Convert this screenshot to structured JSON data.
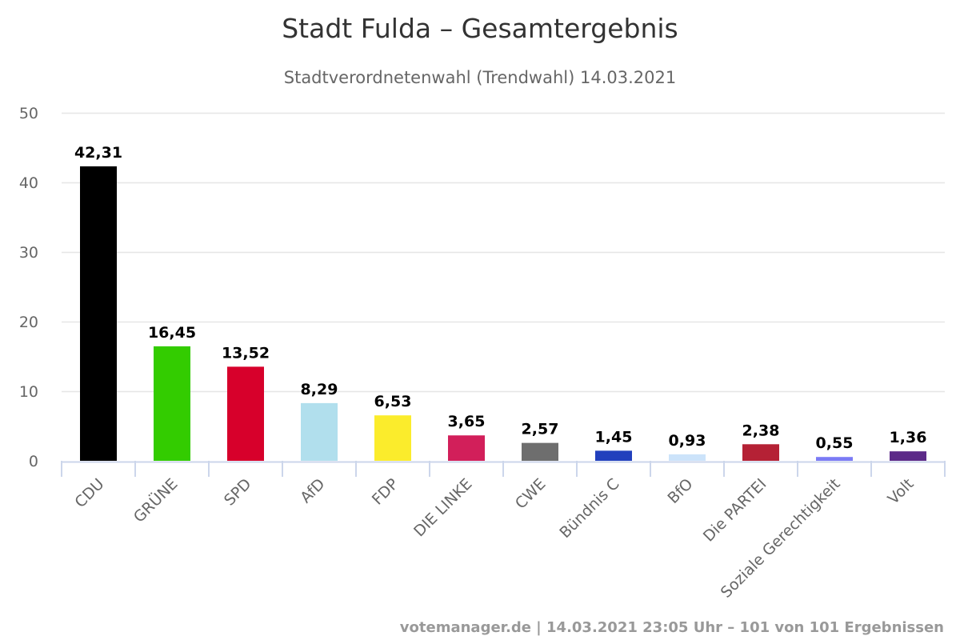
{
  "chart_data": {
    "type": "bar",
    "title": "Stadt Fulda – Gesamtergebnis",
    "subtitle": "Stadtverordnetenwahl (Trendwahl) 14.03.2021",
    "xlabel": "",
    "ylabel": "",
    "ylim": [
      0,
      50
    ],
    "yticks": [
      0,
      10,
      20,
      30,
      40,
      50
    ],
    "grid": true,
    "legend": "none",
    "categories": [
      "CDU",
      "GRÜNE",
      "SPD",
      "AfD",
      "FDP",
      "DIE LINKE",
      "CWE",
      "Bündnis C",
      "BfO",
      "Die PARTEI",
      "Soziale Gerechtigkeit",
      "Volt"
    ],
    "values": [
      42.31,
      16.45,
      13.52,
      8.29,
      6.53,
      3.65,
      2.57,
      1.45,
      0.93,
      2.38,
      0.55,
      1.36
    ],
    "data_labels": [
      "42,31",
      "16,45",
      "13,52",
      "8,29",
      "6,53",
      "3,65",
      "2,57",
      "1,45",
      "0,93",
      "2,38",
      "0,55",
      "1,36"
    ],
    "colors": [
      "#000000",
      "#33cc00",
      "#d7002b",
      "#b1dfed",
      "#fbec2c",
      "#d21f5a",
      "#6e6e6e",
      "#2240bd",
      "#cce3fa",
      "#b52135",
      "#7b7bf5",
      "#5c2a88"
    ],
    "credits": "votemanager.de | 14.03.2021 23:05 Uhr – 101 von 101 Ergebnissen"
  },
  "style": {
    "grid_color": "#e6e6e6",
    "axis_color": "#ccd6eb"
  }
}
